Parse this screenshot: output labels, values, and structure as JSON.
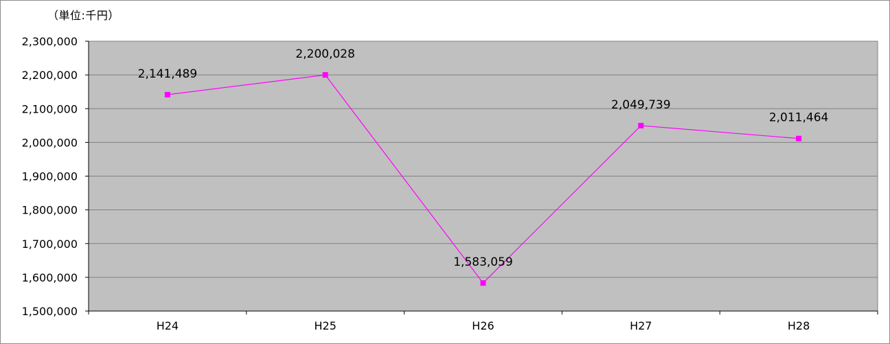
{
  "unit_label": "（単位:千円）",
  "chart_data": {
    "type": "line",
    "categories": [
      "H24",
      "H25",
      "H26",
      "H27",
      "H28"
    ],
    "series": [
      {
        "values": [
          2141489,
          2200028,
          1583059,
          2049739,
          2011464
        ]
      }
    ],
    "data_labels": [
      "2,141,489",
      "2,200,028",
      "1,583,059",
      "2,049,739",
      "2,011,464"
    ],
    "ylim": [
      1500000,
      2300000
    ],
    "y_ticks": [
      1500000,
      1600000,
      1700000,
      1800000,
      1900000,
      2000000,
      2100000,
      2200000,
      2300000
    ],
    "y_tick_labels": [
      "1,500,000",
      "1,600,000",
      "1,700,000",
      "1,800,000",
      "1,900,000",
      "2,000,000",
      "2,100,000",
      "2,200,000",
      "2,300,000"
    ],
    "xlabel": "",
    "ylabel": "",
    "grid": true,
    "legend": "none",
    "colors": {
      "line": "#ff00ff",
      "plot_background": "#c0c0c0",
      "gridline": "#808080",
      "axis": "#000000"
    }
  }
}
